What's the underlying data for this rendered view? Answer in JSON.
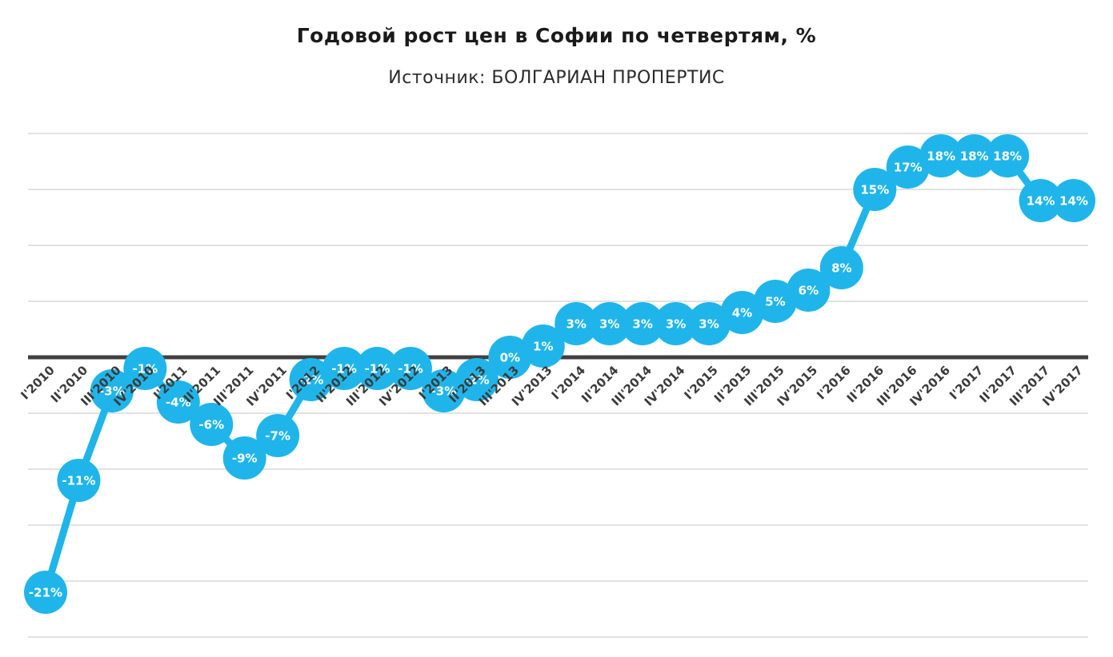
{
  "chart_data": {
    "type": "line",
    "title": "Годовой рост цен в Софии по четвертям, %",
    "subtitle": "Источник: БОЛГАРИАН ПРОПЕРТИС",
    "categories": [
      "I'2010",
      "II'2010",
      "III'2010",
      "IV'2010",
      "I'2011",
      "II'2011",
      "III'2011",
      "IV'2011",
      "I'2012",
      "II'2012",
      "III'2012",
      "IV'2012",
      "I'2013",
      "II'2013",
      "III'2013",
      "IV'2013",
      "I'2014",
      "II'2014",
      "III'2014",
      "IV'2014",
      "I'2015",
      "II'2015",
      "III'2015",
      "IV'2015",
      "I'2016",
      "II'2016",
      "III'2016",
      "IV'2016",
      "I'2017",
      "II'2017",
      "III'2017",
      "IV'2017"
    ],
    "values": [
      -21,
      -11,
      -3,
      -1,
      -4,
      -6,
      -9,
      -7,
      -2,
      -1,
      -1,
      -1,
      -3,
      -2,
      0,
      1,
      3,
      3,
      3,
      3,
      3,
      4,
      5,
      6,
      8,
      15,
      17,
      18,
      18,
      18,
      14,
      14
    ],
    "value_suffix": "%",
    "ylim": [
      -25,
      20
    ],
    "grid_step": 5,
    "grid": true,
    "legend": "none",
    "xlabel": "",
    "ylabel": "",
    "colors": {
      "series": "#1FB5EA",
      "data_label": "#FFFFFF",
      "zero_line": "#404040",
      "gridline": "#D9D9D9",
      "tick_label": "#3A3A3A",
      "title": "#1A1A1A"
    }
  }
}
